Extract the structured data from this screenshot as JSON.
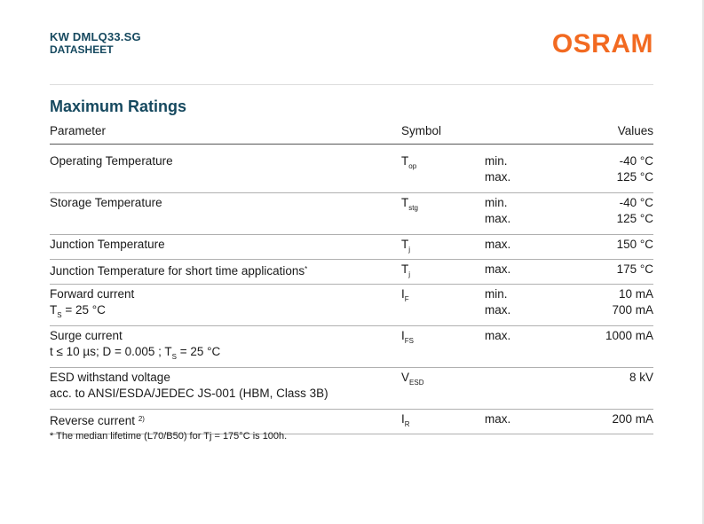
{
  "header": {
    "product": "KW DMLQ33.SG",
    "doctype": "DATASHEET",
    "logo": "OSRAM"
  },
  "section_title": "Maximum Ratings",
  "table": {
    "headers": {
      "parameter": "Parameter",
      "symbol": "Symbol",
      "values": "Values"
    },
    "rows": [
      {
        "param": "Operating Temperature",
        "sym": "T",
        "sym_sub": "op",
        "limits": [
          "min.",
          "max."
        ],
        "values": [
          "-40 °C",
          "125 °C"
        ]
      },
      {
        "param": "Storage Temperature",
        "sym": "T",
        "sym_sub": "stg",
        "limits": [
          "min.",
          "max."
        ],
        "values": [
          "-40 °C",
          "125 °C"
        ]
      },
      {
        "param": "Junction Temperature",
        "sym": "T",
        "sym_sub": "j",
        "limits": [
          "max."
        ],
        "values": [
          "150 °C"
        ]
      },
      {
        "param": "Junction Temperature for short time applications",
        "param_sup": "*",
        "sym": "T",
        "sym_sub": "j",
        "limits": [
          "max."
        ],
        "values": [
          "175 °C"
        ]
      },
      {
        "param": "Forward current",
        "cond_pre": "T",
        "cond_sub": "S",
        "cond_post": " = 25 °C",
        "sym": "I",
        "sym_sub": "F",
        "limits": [
          "min.",
          "max."
        ],
        "values": [
          "10 mA",
          "700 mA"
        ]
      },
      {
        "param": "Surge current",
        "cond_pre": "t ≤ 10 µs; D = 0.005 ; T",
        "cond_sub": "S",
        "cond_post": " = 25 °C",
        "sym": "I",
        "sym_sub": "FS",
        "limits": [
          "max."
        ],
        "values": [
          "1000 mA"
        ]
      },
      {
        "param": "ESD withstand voltage",
        "cond_pre": "acc. to ANSI/ESDA/JEDEC JS-001 (HBM, Class 3B)",
        "sym": "V",
        "sym_sub": "ESD",
        "limits": [],
        "values": [
          "8 kV"
        ]
      },
      {
        "param": "Reverse current",
        "param_sup": "2)",
        "sym": "I",
        "sym_sub": "R",
        "limits": [
          "max."
        ],
        "values": [
          "200 mA"
        ]
      }
    ]
  },
  "footnote": "* The median lifetime (L70/B50) for Tj = 175°C is 100h."
}
